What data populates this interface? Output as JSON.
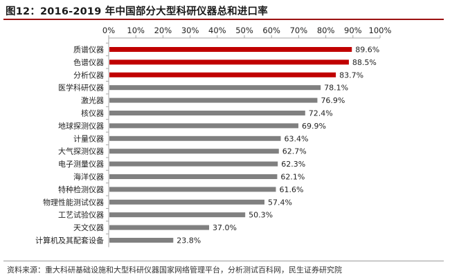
{
  "chart_data": {
    "type": "bar",
    "orientation": "horizontal",
    "title": "图12：2016-2019 年中国部分大型科研仪器总和进口率",
    "xlim": [
      0,
      100
    ],
    "xticks": [
      "0%",
      "10%",
      "20%",
      "30%",
      "40%",
      "50%",
      "60%",
      "70%",
      "80%",
      "90%",
      "100%"
    ],
    "axis_position": "top",
    "grid": false,
    "categories": [
      "质谱仪器",
      "色谱仪器",
      "分析仪器",
      "医学科研仪器",
      "激光器",
      "核仪器",
      "地球探测仪器",
      "计量仪器",
      "大气探测仪器",
      "电子测量仪器",
      "海洋仪器",
      "特种检测仪器",
      "物理性能测试仪器",
      "工艺试验仪器",
      "天文仪器",
      "计算机及其配套设备"
    ],
    "values": [
      89.6,
      88.5,
      83.7,
      78.1,
      76.9,
      72.4,
      69.9,
      63.4,
      62.7,
      62.3,
      62.1,
      61.6,
      57.4,
      50.3,
      37.0,
      23.8
    ],
    "value_labels": [
      "89.6%",
      "88.5%",
      "83.7%",
      "78.1%",
      "76.9%",
      "72.4%",
      "69.9%",
      "63.4%",
      "62.7%",
      "62.3%",
      "62.1%",
      "61.6%",
      "57.4%",
      "50.3%",
      "37.0%",
      "23.8%"
    ],
    "highlight_count": 3,
    "colors": {
      "highlight": "#c00000",
      "normal": "#808080",
      "title_rule": "#9b1010"
    }
  },
  "source": "资料来源：重大科研基础设施和大型科研仪器国家网络管理平台，分析测试百科网，民生证券研究院"
}
